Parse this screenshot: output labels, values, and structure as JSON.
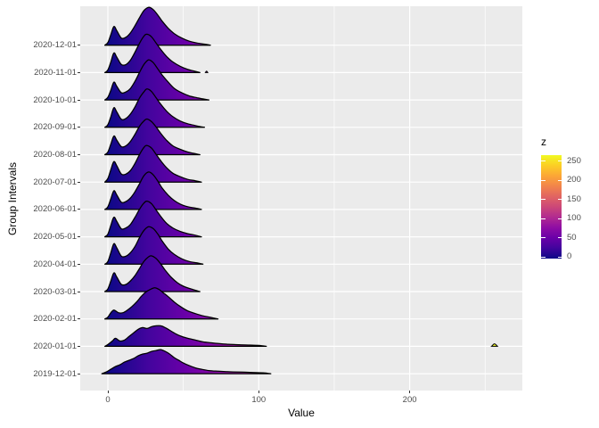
{
  "chart_data": {
    "type": "area",
    "subtype": "ridgeline-density-gradient",
    "xlabel": "Value",
    "ylabel": "Group Intervals",
    "x_ticks": [
      0,
      100,
      200
    ],
    "x_minor_ticks": [
      50,
      150,
      250
    ],
    "x_axis_range_approx": [
      -18,
      275
    ],
    "grid": "on",
    "legend": {
      "title": "z",
      "ticks": [
        0,
        50,
        100,
        150,
        200,
        250
      ],
      "position": "right"
    },
    "colors": {
      "plasma_scale": [
        "#0D0887",
        "#41049D",
        "#6A00A8",
        "#8F0DA4",
        "#B12A90",
        "#CC4778",
        "#E16462",
        "#F2844B",
        "#FCA636",
        "#FCCE25",
        "#F0F921"
      ],
      "panel_bg": "#EBEBEB",
      "grid_line": "#FFFFFF",
      "axis_text": "#4D4D4D",
      "axis_title": "#000000",
      "tick_mark": "#333333",
      "ridge_stroke": "#000000"
    },
    "rows": [
      {
        "label": "2020-12-01",
        "profile": [
          [
            -2,
            0
          ],
          [
            0,
            3
          ],
          [
            2,
            12
          ],
          [
            4,
            21
          ],
          [
            6,
            16
          ],
          [
            9,
            8
          ],
          [
            12,
            9
          ],
          [
            15,
            14
          ],
          [
            18,
            22
          ],
          [
            21,
            31
          ],
          [
            24,
            39
          ],
          [
            27,
            42.5
          ],
          [
            30,
            40
          ],
          [
            33,
            34
          ],
          [
            36,
            27
          ],
          [
            40,
            19
          ],
          [
            44,
            13
          ],
          [
            49,
            8
          ],
          [
            54,
            4.5
          ],
          [
            59,
            2.5
          ],
          [
            64,
            1.2
          ],
          [
            68,
            0
          ]
        ]
      },
      {
        "label": "2020-11-01",
        "profile": [
          [
            -2,
            0
          ],
          [
            0,
            3
          ],
          [
            2,
            12
          ],
          [
            4,
            22
          ],
          [
            6,
            17
          ],
          [
            9,
            9
          ],
          [
            12,
            9
          ],
          [
            15,
            14
          ],
          [
            18,
            23
          ],
          [
            21,
            33
          ],
          [
            24,
            41
          ],
          [
            26,
            43
          ],
          [
            29,
            40
          ],
          [
            32,
            33
          ],
          [
            35,
            26
          ],
          [
            39,
            18
          ],
          [
            43,
            12
          ],
          [
            48,
            7
          ],
          [
            53,
            3.5
          ],
          [
            57,
            1.8
          ],
          [
            61,
            0
          ]
        ]
      },
      {
        "label": "2020-10-01",
        "profile": [
          [
            -2,
            0
          ],
          [
            0,
            3
          ],
          [
            2,
            11
          ],
          [
            4,
            20
          ],
          [
            6,
            15
          ],
          [
            9,
            8
          ],
          [
            12,
            9
          ],
          [
            15,
            13
          ],
          [
            18,
            21
          ],
          [
            21,
            31
          ],
          [
            24,
            40
          ],
          [
            27,
            45
          ],
          [
            30,
            42
          ],
          [
            33,
            35
          ],
          [
            36,
            28
          ],
          [
            40,
            20
          ],
          [
            44,
            13
          ],
          [
            49,
            8
          ],
          [
            54,
            4.5
          ],
          [
            59,
            2.5
          ],
          [
            63,
            1.2
          ],
          [
            67,
            0
          ]
        ]
      },
      {
        "label": "2020-09-01",
        "profile": [
          [
            -2,
            0
          ],
          [
            0,
            3
          ],
          [
            2,
            12
          ],
          [
            4,
            22
          ],
          [
            6,
            17
          ],
          [
            9,
            9
          ],
          [
            12,
            10
          ],
          [
            15,
            15
          ],
          [
            18,
            23
          ],
          [
            21,
            33
          ],
          [
            24,
            40
          ],
          [
            26,
            43
          ],
          [
            29,
            40
          ],
          [
            32,
            33
          ],
          [
            35,
            26
          ],
          [
            39,
            18
          ],
          [
            43,
            12
          ],
          [
            48,
            7
          ],
          [
            53,
            4
          ],
          [
            58,
            2
          ],
          [
            64,
            0
          ]
        ]
      },
      {
        "label": "2020-08-01",
        "profile": [
          [
            -2,
            0
          ],
          [
            0,
            3
          ],
          [
            2,
            12
          ],
          [
            4,
            21
          ],
          [
            6,
            16
          ],
          [
            9,
            9
          ],
          [
            12,
            10
          ],
          [
            15,
            15
          ],
          [
            18,
            23
          ],
          [
            21,
            32
          ],
          [
            24,
            38
          ],
          [
            26,
            40
          ],
          [
            29,
            37
          ],
          [
            32,
            31
          ],
          [
            35,
            24
          ],
          [
            39,
            16
          ],
          [
            43,
            10
          ],
          [
            48,
            6
          ],
          [
            53,
            3
          ],
          [
            57,
            1.5
          ],
          [
            61,
            0
          ]
        ]
      },
      {
        "label": "2020-07-01",
        "profile": [
          [
            -2,
            0
          ],
          [
            0,
            4
          ],
          [
            2,
            14
          ],
          [
            4,
            23
          ],
          [
            6,
            18
          ],
          [
            9,
            9
          ],
          [
            12,
            9
          ],
          [
            15,
            13
          ],
          [
            18,
            21
          ],
          [
            21,
            31
          ],
          [
            24,
            39
          ],
          [
            26,
            41
          ],
          [
            29,
            38
          ],
          [
            32,
            31
          ],
          [
            35,
            24
          ],
          [
            39,
            16
          ],
          [
            43,
            10
          ],
          [
            48,
            6
          ],
          [
            53,
            3
          ],
          [
            58,
            1.5
          ],
          [
            62,
            0
          ]
        ]
      },
      {
        "label": "2020-06-01",
        "profile": [
          [
            -2,
            0
          ],
          [
            0,
            3
          ],
          [
            2,
            12
          ],
          [
            4,
            21
          ],
          [
            6,
            16
          ],
          [
            9,
            8
          ],
          [
            12,
            9
          ],
          [
            15,
            13
          ],
          [
            18,
            20
          ],
          [
            21,
            29
          ],
          [
            24,
            38
          ],
          [
            27,
            42
          ],
          [
            30,
            39
          ],
          [
            33,
            32
          ],
          [
            36,
            24
          ],
          [
            40,
            16
          ],
          [
            44,
            10
          ],
          [
            48,
            6
          ],
          [
            53,
            3
          ],
          [
            58,
            1.5
          ],
          [
            62,
            0
          ]
        ]
      },
      {
        "label": "2020-05-01",
        "profile": [
          [
            -2,
            0
          ],
          [
            0,
            3
          ],
          [
            2,
            13
          ],
          [
            4,
            22
          ],
          [
            6,
            17
          ],
          [
            9,
            9
          ],
          [
            12,
            10
          ],
          [
            15,
            14
          ],
          [
            18,
            22
          ],
          [
            21,
            31
          ],
          [
            24,
            38
          ],
          [
            26,
            40
          ],
          [
            29,
            37
          ],
          [
            32,
            30
          ],
          [
            35,
            23
          ],
          [
            39,
            15
          ],
          [
            43,
            10
          ],
          [
            48,
            6
          ],
          [
            53,
            3.5
          ],
          [
            58,
            1.8
          ],
          [
            62,
            0
          ]
        ]
      },
      {
        "label": "2020-04-01",
        "profile": [
          [
            -2,
            0
          ],
          [
            0,
            3
          ],
          [
            2,
            13
          ],
          [
            4,
            23
          ],
          [
            6,
            18
          ],
          [
            9,
            9
          ],
          [
            12,
            9
          ],
          [
            15,
            13
          ],
          [
            18,
            20
          ],
          [
            21,
            30
          ],
          [
            24,
            38
          ],
          [
            27,
            42
          ],
          [
            30,
            40
          ],
          [
            33,
            34
          ],
          [
            36,
            26
          ],
          [
            40,
            17
          ],
          [
            44,
            11
          ],
          [
            49,
            6
          ],
          [
            54,
            3
          ],
          [
            59,
            1.5
          ],
          [
            63,
            0
          ]
        ]
      },
      {
        "label": "2020-03-01",
        "profile": [
          [
            -2,
            0
          ],
          [
            0,
            3
          ],
          [
            2,
            12
          ],
          [
            4,
            21
          ],
          [
            6,
            16
          ],
          [
            9,
            8
          ],
          [
            12,
            8
          ],
          [
            15,
            12
          ],
          [
            18,
            18
          ],
          [
            21,
            26
          ],
          [
            24,
            34
          ],
          [
            27,
            39
          ],
          [
            29,
            40
          ],
          [
            32,
            37
          ],
          [
            35,
            31
          ],
          [
            38,
            24
          ],
          [
            42,
            16
          ],
          [
            46,
            10
          ],
          [
            50,
            6
          ],
          [
            55,
            3
          ],
          [
            61,
            0
          ]
        ]
      },
      {
        "label": "2020-02-01",
        "profile": [
          [
            -2,
            0
          ],
          [
            0,
            2
          ],
          [
            2,
            7
          ],
          [
            4,
            10
          ],
          [
            7,
            7
          ],
          [
            10,
            7
          ],
          [
            13,
            10
          ],
          [
            16,
            14
          ],
          [
            19,
            19
          ],
          [
            22,
            25
          ],
          [
            25,
            30
          ],
          [
            28,
            33
          ],
          [
            31,
            35
          ],
          [
            34,
            33
          ],
          [
            37,
            29
          ],
          [
            40,
            25
          ],
          [
            44,
            19
          ],
          [
            48,
            14
          ],
          [
            53,
            9
          ],
          [
            58,
            6
          ],
          [
            63,
            3.5
          ],
          [
            68,
            1.8
          ],
          [
            73,
            0
          ]
        ]
      },
      {
        "label": "2020-01-01",
        "profile": [
          [
            -2,
            0
          ],
          [
            0,
            2
          ],
          [
            3,
            6
          ],
          [
            5,
            9
          ],
          [
            8,
            6
          ],
          [
            11,
            7
          ],
          [
            14,
            11
          ],
          [
            17,
            15
          ],
          [
            20,
            19
          ],
          [
            23,
            21
          ],
          [
            26,
            20
          ],
          [
            29,
            22
          ],
          [
            32,
            23
          ],
          [
            35,
            23
          ],
          [
            38,
            21
          ],
          [
            41,
            18
          ],
          [
            45,
            14
          ],
          [
            49,
            11
          ],
          [
            53,
            9
          ],
          [
            58,
            7
          ],
          [
            63,
            5
          ],
          [
            68,
            4
          ],
          [
            74,
            3
          ],
          [
            80,
            2.3
          ],
          [
            87,
            1.8
          ],
          [
            94,
            1.4
          ],
          [
            100,
            1
          ],
          [
            105,
            0
          ]
        ]
      },
      {
        "label": "2019-12-01",
        "profile": [
          [
            -4,
            0
          ],
          [
            -1,
            2
          ],
          [
            2,
            5
          ],
          [
            5,
            8
          ],
          [
            8,
            10
          ],
          [
            11,
            13
          ],
          [
            14,
            15
          ],
          [
            17,
            17
          ],
          [
            20,
            20
          ],
          [
            23,
            22
          ],
          [
            26,
            23
          ],
          [
            29,
            25
          ],
          [
            32,
            26
          ],
          [
            35,
            27
          ],
          [
            38,
            25
          ],
          [
            41,
            22
          ],
          [
            44,
            18
          ],
          [
            47,
            15
          ],
          [
            50,
            12
          ],
          [
            54,
            9
          ],
          [
            58,
            6.5
          ],
          [
            62,
            5
          ],
          [
            67,
            3.5
          ],
          [
            73,
            2.8
          ],
          [
            80,
            2.2
          ],
          [
            88,
            1.8
          ],
          [
            96,
            1.4
          ],
          [
            103,
            1
          ],
          [
            108,
            0
          ]
        ]
      }
    ],
    "outliers": [
      {
        "row_label": "2020-11-01",
        "profile": [
          [
            64.6,
            0
          ],
          [
            65.4,
            1.6
          ],
          [
            66.2,
            0
          ]
        ]
      },
      {
        "row_label": "2020-01-01",
        "profile": [
          [
            254.3,
            0
          ],
          [
            256.2,
            2.8
          ],
          [
            258.2,
            0
          ]
        ]
      }
    ]
  }
}
